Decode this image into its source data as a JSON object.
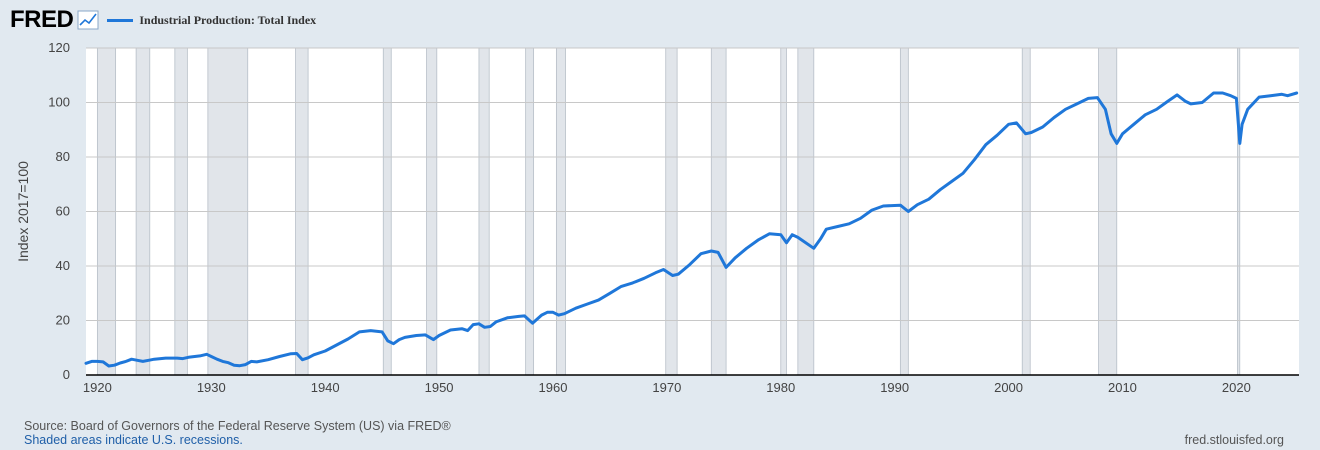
{
  "header": {
    "logo_text": "FRED",
    "logo_icon": "line-chart-icon"
  },
  "colors": {
    "background": "#e1e9f0",
    "plot_background": "#ffffff",
    "series": "#1f77d9",
    "recession": "#e1e5ea",
    "grid": "#c8c8c8"
  },
  "footer": {
    "source": "Source: Board of Governors of the Federal Reserve System (US) via FRED®",
    "note": "Shaded areas indicate U.S. recessions.",
    "url": "fred.stlouisfed.org"
  },
  "chart_data": {
    "type": "line",
    "title": "",
    "xlabel": "",
    "ylabel": "Index 2017=100",
    "xlim": [
      1919,
      2025.5
    ],
    "ylim": [
      0,
      120
    ],
    "x_ticks": [
      1920,
      1930,
      1940,
      1950,
      1960,
      1970,
      1980,
      1990,
      2000,
      2010,
      2020
    ],
    "y_ticks": [
      0,
      20,
      40,
      60,
      80,
      100,
      120
    ],
    "grid": true,
    "legend_position": "top-left",
    "recessions": [
      [
        1920.0,
        1921.6
      ],
      [
        1923.4,
        1924.6
      ],
      [
        1926.8,
        1927.9
      ],
      [
        1929.7,
        1933.2
      ],
      [
        1937.4,
        1938.5
      ],
      [
        1945.1,
        1945.8
      ],
      [
        1948.9,
        1949.8
      ],
      [
        1953.5,
        1954.4
      ],
      [
        1957.6,
        1958.3
      ],
      [
        1960.3,
        1961.1
      ],
      [
        1969.9,
        1970.9
      ],
      [
        1973.9,
        1975.2
      ],
      [
        1980.0,
        1980.5
      ],
      [
        1981.5,
        1982.9
      ],
      [
        1990.5,
        1991.2
      ],
      [
        2001.2,
        2001.9
      ],
      [
        2007.9,
        2009.5
      ],
      [
        2020.1,
        2020.3
      ]
    ],
    "series": [
      {
        "name": "Industrial Production: Total Index",
        "x": [
          1919.0,
          1919.5,
          1920.0,
          1920.5,
          1921.0,
          1921.5,
          1922.0,
          1922.5,
          1923.0,
          1923.5,
          1924.0,
          1924.5,
          1925.0,
          1926.0,
          1927.0,
          1927.5,
          1928.0,
          1929.0,
          1929.6,
          1930.0,
          1930.5,
          1931.0,
          1931.5,
          1932.0,
          1932.5,
          1933.0,
          1933.5,
          1934.0,
          1935.0,
          1936.0,
          1937.0,
          1937.5,
          1938.0,
          1938.5,
          1939.0,
          1940.0,
          1941.0,
          1942.0,
          1943.0,
          1944.0,
          1945.0,
          1945.5,
          1946.0,
          1946.5,
          1947.0,
          1948.0,
          1948.8,
          1949.5,
          1950.0,
          1951.0,
          1952.0,
          1952.5,
          1953.0,
          1953.5,
          1954.0,
          1954.5,
          1955.0,
          1956.0,
          1957.0,
          1957.5,
          1958.2,
          1959.0,
          1959.5,
          1960.0,
          1960.5,
          1961.0,
          1962.0,
          1963.0,
          1964.0,
          1965.0,
          1966.0,
          1967.0,
          1968.0,
          1969.0,
          1969.7,
          1970.5,
          1971.0,
          1972.0,
          1973.0,
          1973.9,
          1974.5,
          1975.2,
          1976.0,
          1977.0,
          1978.0,
          1979.0,
          1980.0,
          1980.5,
          1981.0,
          1981.5,
          1982.9,
          1983.5,
          1984.0,
          1985.0,
          1986.0,
          1987.0,
          1988.0,
          1989.0,
          1990.5,
          1991.2,
          1992.0,
          1993.0,
          1994.0,
          1995.0,
          1996.0,
          1997.0,
          1998.0,
          1999.0,
          2000.0,
          2000.7,
          2001.5,
          2002.0,
          2003.0,
          2004.0,
          2005.0,
          2006.0,
          2007.0,
          2007.8,
          2008.5,
          2009.0,
          2009.5,
          2010.0,
          2011.0,
          2012.0,
          2013.0,
          2014.0,
          2014.8,
          2015.5,
          2016.0,
          2017.0,
          2018.0,
          2018.8,
          2019.5,
          2020.0,
          2020.3,
          2020.5,
          2021.0,
          2022.0,
          2023.0,
          2024.0,
          2024.5,
          2025.3
        ],
        "values": [
          4.3,
          5.0,
          5.0,
          4.8,
          3.3,
          3.6,
          4.4,
          5.0,
          5.8,
          5.4,
          5.0,
          5.4,
          5.8,
          6.2,
          6.2,
          6.0,
          6.5,
          7.0,
          7.6,
          6.8,
          5.8,
          5.0,
          4.5,
          3.6,
          3.4,
          3.8,
          5.0,
          4.8,
          5.6,
          6.8,
          7.8,
          7.9,
          5.6,
          6.3,
          7.4,
          8.8,
          11.0,
          13.2,
          15.8,
          16.3,
          15.8,
          12.5,
          11.5,
          13.0,
          13.8,
          14.5,
          14.7,
          13.0,
          14.5,
          16.5,
          17.0,
          16.3,
          18.5,
          18.8,
          17.5,
          17.8,
          19.5,
          21.0,
          21.5,
          21.7,
          19.0,
          22.0,
          23.0,
          23.0,
          22.0,
          22.5,
          24.5,
          26.0,
          27.5,
          30.0,
          32.5,
          33.8,
          35.5,
          37.5,
          38.7,
          36.5,
          37.0,
          40.5,
          44.5,
          45.5,
          45.0,
          39.5,
          43.0,
          46.5,
          49.5,
          51.8,
          51.5,
          48.5,
          51.5,
          50.5,
          46.5,
          50.0,
          53.5,
          54.5,
          55.5,
          57.5,
          60.5,
          62.0,
          62.3,
          60.0,
          62.5,
          64.5,
          68.0,
          71.0,
          74.0,
          79.0,
          84.5,
          88.0,
          92.0,
          92.5,
          88.5,
          89.0,
          91.0,
          94.5,
          97.5,
          99.5,
          101.5,
          101.8,
          97.5,
          88.5,
          85.0,
          88.5,
          92.0,
          95.5,
          97.5,
          100.5,
          102.8,
          100.5,
          99.5,
          100.0,
          103.5,
          103.5,
          102.5,
          101.5,
          85.0,
          92.0,
          97.5,
          102.0,
          102.5,
          103.0,
          102.5,
          103.5
        ]
      }
    ]
  }
}
